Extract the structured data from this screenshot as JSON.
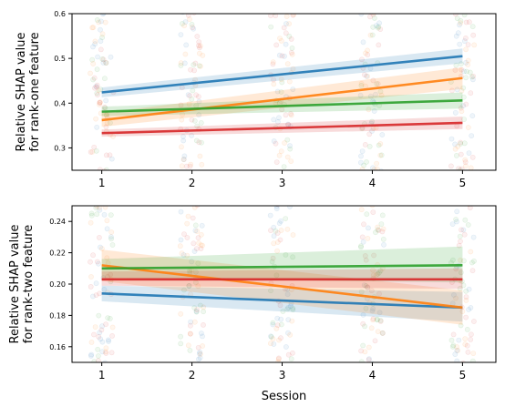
{
  "chart_data": [
    {
      "type": "line",
      "panel": "top",
      "ylabel_line1": "Relative SHAP value",
      "ylabel_line2": "for rank-one feature",
      "xlabel": "",
      "x": [
        1,
        2,
        3,
        4,
        5
      ],
      "xlim": [
        0.67,
        5.37
      ],
      "ylim": [
        0.25,
        0.6
      ],
      "x_ticks": [
        "1",
        "2",
        "3",
        "4",
        "5"
      ],
      "y_ticks": [
        "0.3",
        "0.4",
        "0.5",
        "0.6"
      ],
      "y_tick_values": [
        0.3,
        0.4,
        0.5,
        0.6
      ],
      "grid": false,
      "legend": "none",
      "series": [
        {
          "color": "#1f77b4",
          "start": 0.424,
          "end": 0.505,
          "band": [
            [
              0.413,
              0.435
            ],
            [
              0.489,
              0.522
            ]
          ]
        },
        {
          "color": "#ff7f0e",
          "start": 0.362,
          "end": 0.456,
          "band": [
            [
              0.347,
              0.378
            ],
            [
              0.432,
              0.48
            ]
          ]
        },
        {
          "color": "#2ca02c",
          "start": 0.381,
          "end": 0.406,
          "band": [
            [
              0.371,
              0.392
            ],
            [
              0.388,
              0.424
            ]
          ]
        },
        {
          "color": "#d62728",
          "start": 0.333,
          "end": 0.356,
          "band": [
            [
              0.325,
              0.341
            ],
            [
              0.342,
              0.37
            ]
          ]
        }
      ]
    },
    {
      "type": "line",
      "panel": "bottom",
      "ylabel_line1": "Relative SHAP value",
      "ylabel_line2": "for rank-two feature",
      "xlabel": "Session",
      "x": [
        1,
        2,
        3,
        4,
        5
      ],
      "xlim": [
        0.67,
        5.37
      ],
      "ylim": [
        0.15,
        0.25
      ],
      "x_ticks": [
        "1",
        "2",
        "3",
        "4",
        "5"
      ],
      "y_ticks": [
        "0.16",
        "0.18",
        "0.20",
        "0.22",
        "0.24"
      ],
      "y_tick_values": [
        0.16,
        0.18,
        0.2,
        0.22,
        0.24
      ],
      "grid": false,
      "legend": "none",
      "series": [
        {
          "color": "#1f77b4",
          "start": 0.194,
          "end": 0.185,
          "band": [
            [
              0.189,
              0.199
            ],
            [
              0.176,
              0.195
            ]
          ]
        },
        {
          "color": "#ff7f0e",
          "start": 0.212,
          "end": 0.185,
          "band": [
            [
              0.202,
              0.222
            ],
            [
              0.174,
              0.196
            ]
          ]
        },
        {
          "color": "#2ca02c",
          "start": 0.21,
          "end": 0.212,
          "band": [
            [
              0.204,
              0.216
            ],
            [
              0.201,
              0.224
            ]
          ]
        },
        {
          "color": "#d62728",
          "start": 0.203,
          "end": 0.203,
          "band": [
            [
              0.199,
              0.208
            ],
            [
              0.197,
              0.21
            ]
          ]
        }
      ]
    }
  ]
}
